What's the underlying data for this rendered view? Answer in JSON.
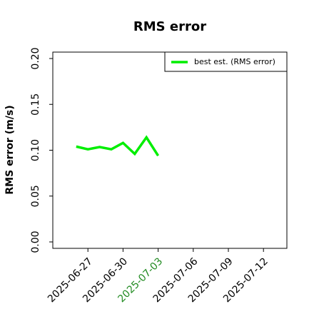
{
  "chart_data": {
    "type": "line",
    "title": "RMS error",
    "ylabel": "RMS error (m/s)",
    "x": [
      "2025-06-26",
      "2025-06-27",
      "2025-06-28",
      "2025-06-29",
      "2025-06-30",
      "2025-07-01",
      "2025-07-02",
      "2025-07-03"
    ],
    "series": [
      {
        "name": "best est. (RMS error)",
        "color": "#00ee00",
        "values": [
          0.104,
          0.101,
          0.1035,
          0.101,
          0.108,
          0.096,
          0.114,
          0.094
        ]
      }
    ],
    "xlim": [
      "2025-06-24",
      "2025-07-14"
    ],
    "xticks": [
      "2025-06-27",
      "2025-06-30",
      "2025-07-03",
      "2025-07-06",
      "2025-07-09",
      "2025-07-12"
    ],
    "xtick_colors": [
      "#000000",
      "#000000",
      "#228b22",
      "#000000",
      "#000000",
      "#000000"
    ],
    "ylim": [
      -0.007,
      0.207
    ],
    "yticks": [
      {
        "value": 0,
        "label": "0.00"
      },
      {
        "value": 0.05,
        "label": "0.05"
      },
      {
        "value": 0.1,
        "label": "0.10"
      },
      {
        "value": 0.15,
        "label": "0.15"
      },
      {
        "value": 0.2,
        "label": "0.20"
      }
    ],
    "grid": false,
    "legend": "upper right"
  }
}
